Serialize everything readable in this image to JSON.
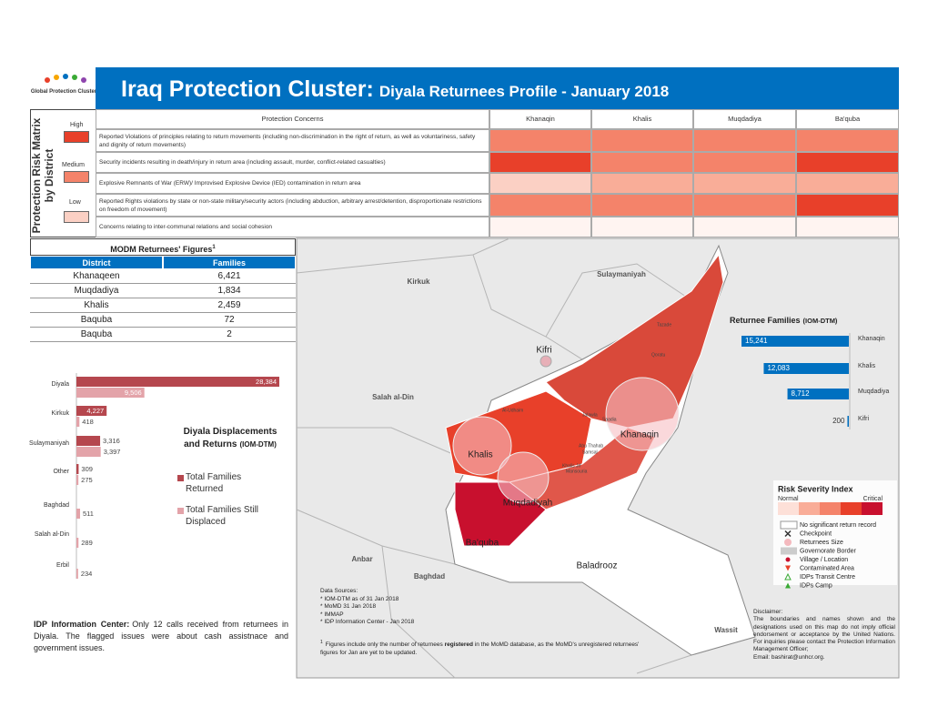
{
  "header": {
    "logo": "Global Protection Cluster",
    "title": "Iraq Protection Cluster:",
    "subtitle": "Diyala Returnees Profile - January 2018"
  },
  "risk_matrix": {
    "side_title": [
      "Protection Risk Matrix",
      "by District"
    ],
    "scale_labels": [
      "High",
      "Medium",
      "Low"
    ],
    "scale_colors": [
      "#e8402a",
      "#f4836a",
      "#fbd0c4"
    ],
    "columns": [
      "Protection Concerns",
      "Khanaqin",
      "Khalis",
      "Muqdadiya",
      "Ba'quba"
    ],
    "rows": [
      {
        "concern": "Reported Violations of principles relating to return movements (including non-discrimination in the right of return, as well as voluntariness, safety and dignity of return movements)",
        "colors": [
          "#f4836a",
          "#f4836a",
          "#f4836a",
          "#f4836a"
        ]
      },
      {
        "concern": "Security incidents resulting in death/injury in return area (including assault, murder, conflict-related casualties)",
        "colors": [
          "#e8402a",
          "#f4836a",
          "#f4836a",
          "#e8402a"
        ]
      },
      {
        "concern": "Explosive Remnants of War (ERW)/ Improvised Explosive Device (IED) contamination in return area",
        "colors": [
          "#fbd0c4",
          "#f9ad98",
          "#f9ad98",
          "#f9ad98"
        ]
      },
      {
        "concern": "Reported Rights violations by state or non-state military/security actors (including abduction, arbitrary arrest/detention, disproportionate restrictions on freedom of movement)",
        "colors": [
          "#f4836a",
          "#f4836a",
          "#f4836a",
          "#e8402a"
        ]
      },
      {
        "concern": "Concerns relating to inter-communal relations and social cohesion",
        "colors": [
          "#fff4f1",
          "#fff4f1",
          "#fff4f1",
          "#fff4f1"
        ]
      }
    ]
  },
  "modm_table": {
    "title": "MODM Returnees' Figures",
    "note_mark": "1",
    "header": [
      "District",
      "Families"
    ],
    "rows": [
      [
        "Khanaqeen",
        "6,421"
      ],
      [
        "Muqdadiya",
        "1,834"
      ],
      [
        "Khalis",
        "2,459"
      ],
      [
        "Baquba",
        "72"
      ],
      [
        "Baquba",
        "2"
      ]
    ]
  },
  "chart_data": [
    {
      "type": "bar",
      "orientation": "horizontal",
      "title": "Diyala Displacements",
      "title_line2": "and Returns",
      "title_source": "(IOM-DTM)",
      "categories": [
        "Diyala",
        "Kirkuk",
        "Sulaymaniyah",
        "Other",
        "Baghdad",
        "Salah al-Din",
        "Erbil"
      ],
      "series": [
        {
          "name": "Total Families Returned",
          "color": "#b5474e",
          "values": [
            28384,
            4227,
            3316,
            309,
            null,
            null,
            null
          ],
          "value_labels": [
            "28,384",
            "4,227",
            "3,316",
            "309",
            null,
            null,
            null
          ]
        },
        {
          "name": "Total Families Still Displaced",
          "color": "#e3a3a9",
          "values": [
            9506,
            418,
            3397,
            275,
            511,
            289,
            234
          ],
          "value_labels": [
            "9,506",
            "418",
            "3,397",
            "275",
            "511",
            "289",
            "234"
          ]
        }
      ]
    },
    {
      "type": "bar",
      "orientation": "horizontal",
      "title": "Returnee Families",
      "title_source": "(IOM-DTM)",
      "categories": [
        "Khanaqin",
        "Khalis",
        "Muqdadiya",
        "Kifri"
      ],
      "values": [
        15241,
        12083,
        8712,
        200
      ],
      "value_labels": [
        "15,241",
        "12,083",
        "8,712",
        "200"
      ],
      "color": "#0070c0"
    }
  ],
  "map": {
    "governorates": [
      "Kirkuk",
      "Sulaymaniyah",
      "Salah al-Din",
      "Anbar",
      "Baghdad",
      "Wassit"
    ],
    "districts": [
      "Kifri",
      "Khanaqin",
      "Khalis",
      "Muqdadiyah",
      "Ba'quba",
      "Baladrooz"
    ],
    "places": [
      "Tazade",
      "Qoratu",
      "Al-Udhaim",
      "Jalawla",
      "Saadia",
      "Abu Thahab",
      "Samsal",
      "Khalis Jrf",
      "Mansouria"
    ]
  },
  "map_legend": {
    "title": "Risk Severity Index",
    "low": "Normal",
    "high": "Critical",
    "colors": [
      "#fde0d8",
      "#f9ad98",
      "#f4836a",
      "#e8402a",
      "#c8102e"
    ],
    "items": [
      "No significant return record",
      "Checkpoint",
      "Returnees Size",
      "Governorate Border",
      "Village / Location",
      "Contaminated Area",
      "IDPs Transit Centre",
      "IDPs Camp"
    ]
  },
  "info_center": {
    "label": "IDP Information Center:",
    "text": "Only 12 calls received from returnees in Diyala. The flagged issues were about cash assistnace and government issues."
  },
  "sources": {
    "title": "Data Sources:",
    "items": [
      "* IOM-DTM as of 31 Jan 2018",
      "* MoMD 31 Jan 2018",
      "* IMMAP",
      "* IDP Information Center - Jan 2018"
    ],
    "footnote_mark": "1",
    "footnote_parts": [
      "Figures include only the number of returnees ",
      "registered",
      " in the MoMD database, as the MoMD's unregistered returnees' figures for Jan are yet to be updated."
    ]
  },
  "disclaimer": {
    "title": "Disclaimer:",
    "text": "The boundaries and names shown and the designations used on this map do not imply official endorsement or acceptance by the United Nations. For inquiries please contact the Protection Information Management Officer;",
    "email": "Email: bashirat@unhcr.org."
  }
}
